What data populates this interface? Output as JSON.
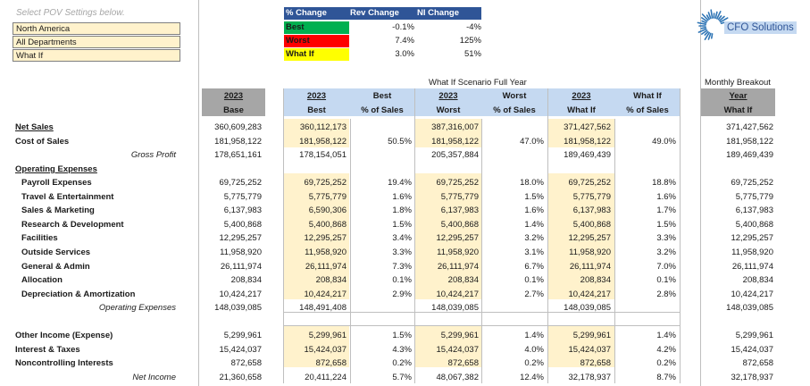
{
  "pov": {
    "title": "Select POV Settings below.",
    "region": "North America",
    "department": "All Departments",
    "scenario": "What If"
  },
  "legend": {
    "headers": [
      "% Change",
      "Rev Change",
      "NI Change"
    ],
    "rows": [
      {
        "label": "Best",
        "rev": "-0.1%",
        "ni": "-4%",
        "color": "#00b050"
      },
      {
        "label": "Worst",
        "rev": "7.4%",
        "ni": "125%",
        "color": "#ff0000"
      },
      {
        "label": "What If",
        "rev": "3.0%",
        "ni": "51%",
        "color": "#ffff00"
      }
    ]
  },
  "logo": {
    "text": "CFO Solutions",
    "icon": "sunburst-logo-icon"
  },
  "section_titles": {
    "scenario": "What If Scenario Full Year",
    "monthly": "Monthly Breakout"
  },
  "columns": {
    "base": {
      "year": "2023",
      "sub": "Base"
    },
    "best": {
      "year": "2023",
      "sub": "Best"
    },
    "best_pct": {
      "top": "Best",
      "sub": "% of Sales"
    },
    "worst": {
      "year": "2023",
      "sub": "Worst"
    },
    "worst_pct": {
      "top": "Worst",
      "sub": "% of Sales"
    },
    "whatif": {
      "year": "2023",
      "sub": "What If"
    },
    "whatif_pct": {
      "top": "What If",
      "sub": "% of Sales"
    },
    "monthly": {
      "year": "Year",
      "sub": "What If"
    }
  },
  "rows": [
    {
      "label": "Net Sales",
      "style": "bold-ul",
      "base": "360,609,283",
      "best": "360,112,173",
      "best_pct": "",
      "worst": "387,316,007",
      "worst_pct": "",
      "whatif": "371,427,562",
      "whatif_pct": "",
      "monthly": "371,427,562"
    },
    {
      "label": "Cost of Sales",
      "style": "bold",
      "base": "181,958,122",
      "best": "181,958,122",
      "best_pct": "50.5%",
      "worst": "181,958,122",
      "worst_pct": "47.0%",
      "whatif": "181,958,122",
      "whatif_pct": "49.0%",
      "monthly": "181,958,122"
    },
    {
      "label": "Gross Profit",
      "style": "ital-sub",
      "base": "178,651,161",
      "best": "178,154,051",
      "best_pct": "",
      "worst": "205,357,884",
      "worst_pct": "",
      "whatif": "189,469,439",
      "whatif_pct": "",
      "monthly": "189,469,439"
    },
    {
      "label": "Operating Expenses",
      "style": "bold-ul",
      "base": "",
      "best": "",
      "best_pct": "",
      "worst": "",
      "worst_pct": "",
      "whatif": "",
      "whatif_pct": "",
      "monthly": ""
    },
    {
      "label": "Payroll Expenses",
      "style": "bold-indent",
      "base": "69,725,252",
      "best": "69,725,252",
      "best_pct": "19.4%",
      "worst": "69,725,252",
      "worst_pct": "18.0%",
      "whatif": "69,725,252",
      "whatif_pct": "18.8%",
      "monthly": "69,725,252"
    },
    {
      "label": "Travel & Entertainment",
      "style": "bold-indent",
      "base": "5,775,779",
      "best": "5,775,779",
      "best_pct": "1.6%",
      "worst": "5,775,779",
      "worst_pct": "1.5%",
      "whatif": "5,775,779",
      "whatif_pct": "1.6%",
      "monthly": "5,775,779"
    },
    {
      "label": "Sales & Marketing",
      "style": "bold-indent",
      "base": "6,137,983",
      "best": "6,590,306",
      "best_pct": "1.8%",
      "worst": "6,137,983",
      "worst_pct": "1.6%",
      "whatif": "6,137,983",
      "whatif_pct": "1.7%",
      "monthly": "6,137,983"
    },
    {
      "label": "Research & Development",
      "style": "bold-indent",
      "base": "5,400,868",
      "best": "5,400,868",
      "best_pct": "1.5%",
      "worst": "5,400,868",
      "worst_pct": "1.4%",
      "whatif": "5,400,868",
      "whatif_pct": "1.5%",
      "monthly": "5,400,868"
    },
    {
      "label": "Facilities",
      "style": "bold-indent",
      "base": "12,295,257",
      "best": "12,295,257",
      "best_pct": "3.4%",
      "worst": "12,295,257",
      "worst_pct": "3.2%",
      "whatif": "12,295,257",
      "whatif_pct": "3.3%",
      "monthly": "12,295,257"
    },
    {
      "label": "Outside Services",
      "style": "bold-indent",
      "base": "11,958,920",
      "best": "11,958,920",
      "best_pct": "3.3%",
      "worst": "11,958,920",
      "worst_pct": "3.1%",
      "whatif": "11,958,920",
      "whatif_pct": "3.2%",
      "monthly": "11,958,920"
    },
    {
      "label": "General & Admin",
      "style": "bold-indent",
      "base": "26,111,974",
      "best": "26,111,974",
      "best_pct": "7.3%",
      "worst": "26,111,974",
      "worst_pct": "6.7%",
      "whatif": "26,111,974",
      "whatif_pct": "7.0%",
      "monthly": "26,111,974"
    },
    {
      "label": "Allocation",
      "style": "bold-indent",
      "base": "208,834",
      "best": "208,834",
      "best_pct": "0.1%",
      "worst": "208,834",
      "worst_pct": "0.1%",
      "whatif": "208,834",
      "whatif_pct": "0.1%",
      "monthly": "208,834"
    },
    {
      "label": "Depreciation & Amortization",
      "style": "bold-indent",
      "base": "10,424,217",
      "best": "10,424,217",
      "best_pct": "2.9%",
      "worst": "10,424,217",
      "worst_pct": "2.7%",
      "whatif": "10,424,217",
      "whatif_pct": "2.8%",
      "monthly": "10,424,217"
    },
    {
      "label": "Operating Expenses",
      "style": "ital-sub",
      "base": "148,039,085",
      "best": "148,491,408",
      "best_pct": "",
      "worst": "148,039,085",
      "worst_pct": "",
      "whatif": "148,039,085",
      "whatif_pct": "",
      "monthly": "148,039,085"
    },
    {
      "label": "",
      "style": "blank",
      "base": "",
      "best": "",
      "best_pct": "",
      "worst": "",
      "worst_pct": "",
      "whatif": "",
      "whatif_pct": "",
      "monthly": ""
    },
    {
      "label": "Other Income (Expense)",
      "style": "bold",
      "base": "5,299,961",
      "best": "5,299,961",
      "best_pct": "1.5%",
      "worst": "5,299,961",
      "worst_pct": "1.4%",
      "whatif": "5,299,961",
      "whatif_pct": "1.4%",
      "monthly": "5,299,961"
    },
    {
      "label": "Interest & Taxes",
      "style": "bold",
      "base": "15,424,037",
      "best": "15,424,037",
      "best_pct": "4.3%",
      "worst": "15,424,037",
      "worst_pct": "4.0%",
      "whatif": "15,424,037",
      "whatif_pct": "4.2%",
      "monthly": "15,424,037"
    },
    {
      "label": "Noncontrolling Interests",
      "style": "bold",
      "base": "872,658",
      "best": "872,658",
      "best_pct": "0.2%",
      "worst": "872,658",
      "worst_pct": "0.2%",
      "whatif": "872,658",
      "whatif_pct": "0.2%",
      "monthly": "872,658"
    },
    {
      "label": "Net Income",
      "style": "ital-sub",
      "base": "21,360,658",
      "best": "20,411,224",
      "best_pct": "5.7%",
      "worst": "48,067,382",
      "worst_pct": "12.4%",
      "whatif": "32,178,937",
      "whatif_pct": "8.7%",
      "monthly": "32,178,937"
    }
  ]
}
